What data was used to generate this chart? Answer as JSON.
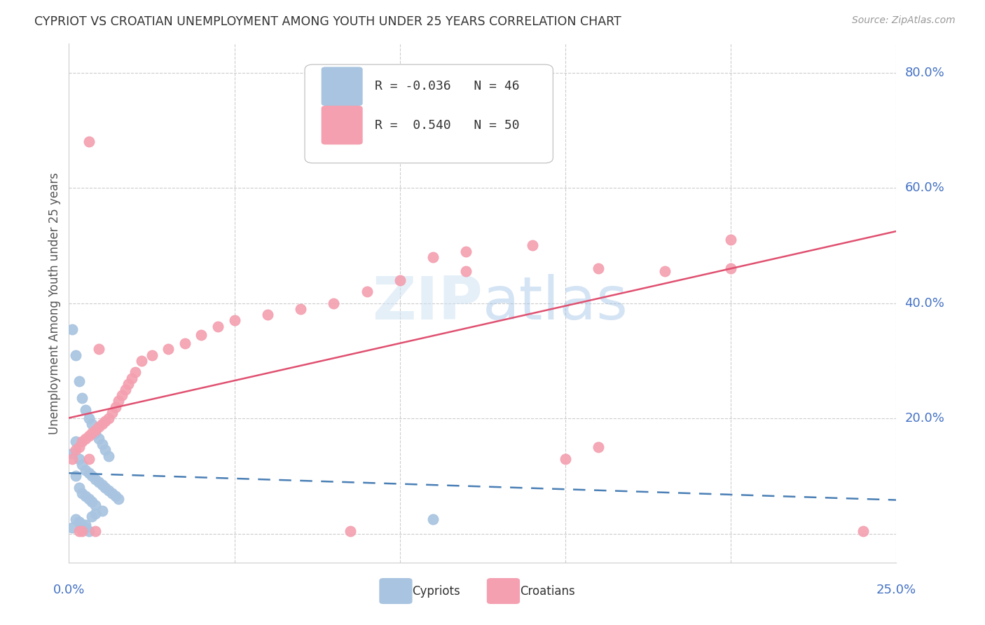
{
  "title": "CYPRIOT VS CROATIAN UNEMPLOYMENT AMONG YOUTH UNDER 25 YEARS CORRELATION CHART",
  "source": "Source: ZipAtlas.com",
  "ylabel": "Unemployment Among Youth under 25 years",
  "xlim": [
    0.0,
    0.25
  ],
  "ylim": [
    -0.05,
    0.85
  ],
  "yticks": [
    0.0,
    0.2,
    0.4,
    0.6,
    0.8
  ],
  "ytick_labels": [
    "",
    "20.0%",
    "40.0%",
    "60.0%",
    "80.0%"
  ],
  "xtick_labels": [
    "0.0%",
    "25.0%"
  ],
  "watermark": "ZIPatlas",
  "cypriot_R": -0.036,
  "cypriot_N": 46,
  "croatian_R": 0.54,
  "croatian_N": 50,
  "cypriot_color": "#a8c4e0",
  "croatian_color": "#f4a0b0",
  "cypriot_line_color": "#4a7fb5",
  "croatian_line_color": "#e05070",
  "background_color": "#ffffff",
  "grid_color": "#cccccc",
  "axis_label_color": "#4472c4",
  "cypriot_x": [
    0.001,
    0.002,
    0.002,
    0.003,
    0.003,
    0.004,
    0.004,
    0.005,
    0.005,
    0.006,
    0.006,
    0.007,
    0.007,
    0.008,
    0.008,
    0.009,
    0.01,
    0.01,
    0.011,
    0.012,
    0.013,
    0.014,
    0.015,
    0.001,
    0.002,
    0.003,
    0.004,
    0.005,
    0.006,
    0.007,
    0.008,
    0.009,
    0.01,
    0.011,
    0.012,
    0.002,
    0.003,
    0.004,
    0.005,
    0.006,
    0.007,
    0.008,
    0.11,
    0.003,
    0.005,
    0.001
  ],
  "cypriot_y": [
    0.14,
    0.16,
    0.1,
    0.13,
    0.08,
    0.12,
    0.07,
    0.11,
    0.065,
    0.105,
    0.06,
    0.1,
    0.055,
    0.095,
    0.05,
    0.09,
    0.085,
    0.04,
    0.08,
    0.075,
    0.07,
    0.065,
    0.06,
    0.355,
    0.31,
    0.265,
    0.235,
    0.215,
    0.2,
    0.19,
    0.175,
    0.165,
    0.155,
    0.145,
    0.135,
    0.025,
    0.02,
    0.015,
    0.01,
    0.005,
    0.03,
    0.035,
    0.025,
    0.02,
    0.015,
    0.01
  ],
  "croatian_x": [
    0.001,
    0.002,
    0.003,
    0.004,
    0.005,
    0.006,
    0.007,
    0.008,
    0.009,
    0.01,
    0.011,
    0.012,
    0.013,
    0.014,
    0.015,
    0.016,
    0.017,
    0.018,
    0.019,
    0.02,
    0.022,
    0.025,
    0.03,
    0.035,
    0.04,
    0.045,
    0.05,
    0.06,
    0.07,
    0.08,
    0.09,
    0.1,
    0.11,
    0.12,
    0.14,
    0.16,
    0.18,
    0.2,
    0.004,
    0.006,
    0.008,
    0.15,
    0.003,
    0.006,
    0.009,
    0.085,
    0.12,
    0.16,
    0.2,
    0.24
  ],
  "croatian_y": [
    0.13,
    0.145,
    0.15,
    0.16,
    0.165,
    0.17,
    0.175,
    0.18,
    0.185,
    0.19,
    0.195,
    0.2,
    0.21,
    0.22,
    0.23,
    0.24,
    0.25,
    0.26,
    0.27,
    0.28,
    0.3,
    0.31,
    0.32,
    0.33,
    0.345,
    0.36,
    0.37,
    0.38,
    0.39,
    0.4,
    0.42,
    0.44,
    0.48,
    0.49,
    0.5,
    0.15,
    0.455,
    0.46,
    0.005,
    0.13,
    0.005,
    0.13,
    0.005,
    0.68,
    0.32,
    0.005,
    0.455,
    0.46,
    0.51,
    0.005
  ],
  "legend_cyp_text": "R = -0.036   N = 46",
  "legend_cro_text": "R =  0.540   N = 50"
}
